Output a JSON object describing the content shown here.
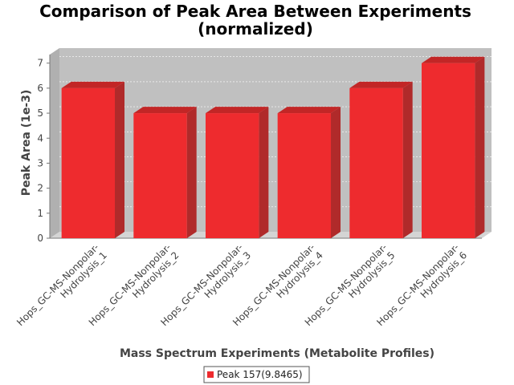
{
  "chart_data": {
    "type": "bar",
    "title": "Comparison of Peak Area Between Experiments",
    "subtitle": "(normalized)",
    "xlabel": "Mass Spectrum Experiments (Metabolite Profiles)",
    "ylabel": "Peak Area (1e-3)",
    "categories": [
      [
        "Hops_GC-MS-Nonpolar-",
        "Hydrolysis_1"
      ],
      [
        "Hops_GC-MS-Nonpolar-",
        "Hydrolysis_2"
      ],
      [
        "Hops_GC-MS-Nonpolar-",
        "Hydrolysis_3"
      ],
      [
        "Hops_GC-MS-Nonpolar-",
        "Hydrolysis_4"
      ],
      [
        "Hops_GC-MS-Nonpolar-",
        "Hydrolysis_5"
      ],
      [
        "Hops_GC-MS-Nonpolar-",
        "Hydrolysis_6"
      ]
    ],
    "series": [
      {
        "name": "Peak 157(9.8465)",
        "values": [
          6,
          5,
          5,
          5,
          6,
          7
        ],
        "color": "#ee2b2e"
      }
    ],
    "ylim": [
      0,
      7.6
    ],
    "yticks": [
      0,
      1,
      2,
      3,
      4,
      5,
      6,
      7
    ],
    "grid": true,
    "legend_position": "bottom"
  }
}
